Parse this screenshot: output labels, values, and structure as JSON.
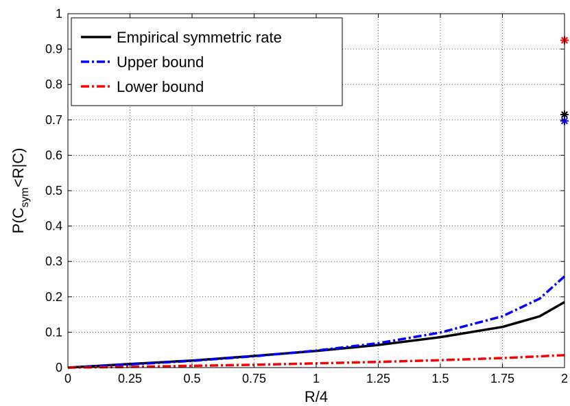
{
  "chart_data": {
    "type": "line",
    "xlabel": "R/4",
    "ylabel": {
      "main": "P(C",
      "sub": "sym",
      "rest": "<R|C)"
    },
    "xlim": [
      0,
      2
    ],
    "ylim": [
      0,
      1
    ],
    "grid": true,
    "legend_position": "top-left",
    "x_ticks": [
      {
        "value": 0,
        "label": "0"
      },
      {
        "value": 0.25,
        "label": "0.25"
      },
      {
        "value": 0.5,
        "label": "0.5"
      },
      {
        "value": 0.75,
        "label": "0.75"
      },
      {
        "value": 1,
        "label": "1"
      },
      {
        "value": 1.25,
        "label": "1.25"
      },
      {
        "value": 1.5,
        "label": "1.5"
      },
      {
        "value": 1.75,
        "label": "1.75"
      },
      {
        "value": 2,
        "label": "2"
      }
    ],
    "y_ticks": [
      {
        "value": 0,
        "label": "0"
      },
      {
        "value": 0.1,
        "label": "0.1"
      },
      {
        "value": 0.2,
        "label": "0.2"
      },
      {
        "value": 0.3,
        "label": "0.3"
      },
      {
        "value": 0.4,
        "label": "0.4"
      },
      {
        "value": 0.5,
        "label": "0.5"
      },
      {
        "value": 0.6,
        "label": "0.6"
      },
      {
        "value": 0.7,
        "label": "0.7"
      },
      {
        "value": 0.8,
        "label": "0.8"
      },
      {
        "value": 0.9,
        "label": "0.9"
      },
      {
        "value": 1,
        "label": "1"
      }
    ],
    "series": [
      {
        "name": "Empirical symmetric rate",
        "color": "#000000",
        "style": "solid",
        "x": [
          0,
          0.25,
          0.5,
          0.75,
          1,
          1.25,
          1.5,
          1.75,
          1.9,
          2
        ],
        "y": [
          0,
          0.01,
          0.02,
          0.033,
          0.047,
          0.064,
          0.086,
          0.115,
          0.145,
          0.185
        ]
      },
      {
        "name": "Upper bound",
        "color": "#0000ff",
        "style": "dashdot",
        "x": [
          0,
          0.25,
          0.5,
          0.75,
          1,
          1.25,
          1.5,
          1.75,
          1.9,
          2
        ],
        "y": [
          0,
          0.009,
          0.019,
          0.032,
          0.048,
          0.069,
          0.099,
          0.145,
          0.195,
          0.258
        ]
      },
      {
        "name": "Lower bound",
        "color": "#ff0000",
        "style": "dashdot",
        "x": [
          0,
          0.25,
          0.5,
          0.75,
          1,
          1.25,
          1.5,
          1.75,
          2
        ],
        "y": [
          0,
          0.002,
          0.005,
          0.008,
          0.012,
          0.016,
          0.021,
          0.027,
          0.035
        ]
      }
    ],
    "markers": [
      {
        "series": "Lower bound",
        "x": 2,
        "y": 0.925,
        "color": "#ff0000",
        "symbol": "asterisk"
      },
      {
        "series": "Empirical symmetric rate",
        "x": 2,
        "y": 0.715,
        "color": "#000000",
        "symbol": "asterisk"
      },
      {
        "series": "Upper bound",
        "x": 2,
        "y": 0.697,
        "color": "#0000ff",
        "symbol": "asterisk"
      }
    ]
  }
}
